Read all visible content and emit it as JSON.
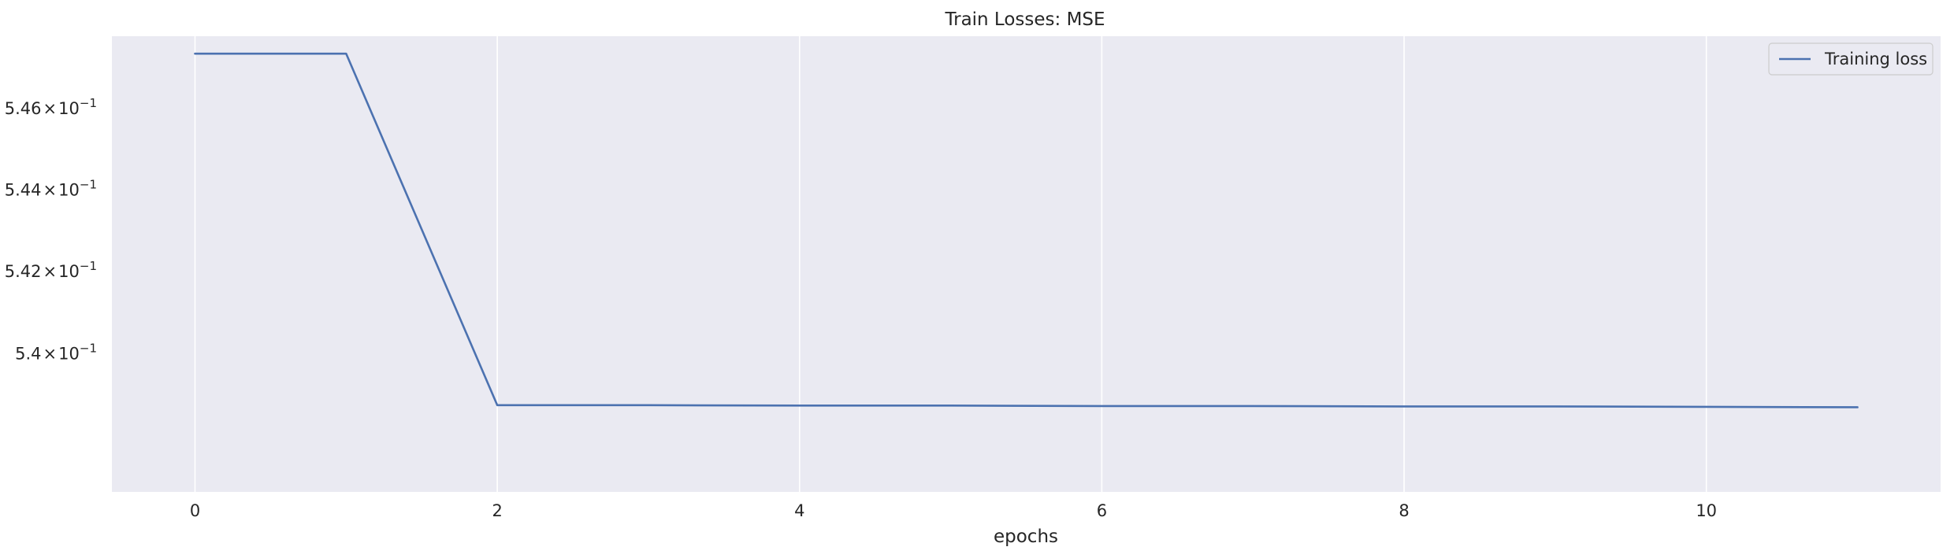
{
  "chart_data": {
    "type": "line",
    "title": "Train Losses:  MSE",
    "xlabel": "epochs",
    "ylabel": "",
    "yscale": "log",
    "grid": "vertical",
    "legend_position": "top-right",
    "background_color": "#eaeaf2",
    "grid_color": "#ffffff",
    "xlim": [
      -0.55,
      11.55
    ],
    "ylim": [
      0.53665,
      0.54778
    ],
    "x_ticks": [
      0,
      2,
      4,
      6,
      8,
      10
    ],
    "y_ticks": [
      {
        "value": 0.546,
        "mantissa": "5.46",
        "base": "10",
        "exponent": "−1"
      },
      {
        "value": 0.544,
        "mantissa": "5.44",
        "base": "10",
        "exponent": "−1"
      },
      {
        "value": 0.542,
        "mantissa": "5.42",
        "base": "10",
        "exponent": "−1"
      },
      {
        "value": 0.54,
        "mantissa": "5.4",
        "base": "10",
        "exponent": "−1"
      }
    ],
    "series": [
      {
        "name": "Training loss",
        "color": "#4c72b0",
        "x": [
          0,
          1,
          2,
          3,
          4,
          5,
          6,
          7,
          8,
          9,
          10,
          11
        ],
        "values": [
          0.54735,
          0.54735,
          0.53875,
          0.53875,
          0.53874,
          0.53874,
          0.53873,
          0.53873,
          0.53872,
          0.53872,
          0.53871,
          0.5387
        ]
      }
    ]
  }
}
